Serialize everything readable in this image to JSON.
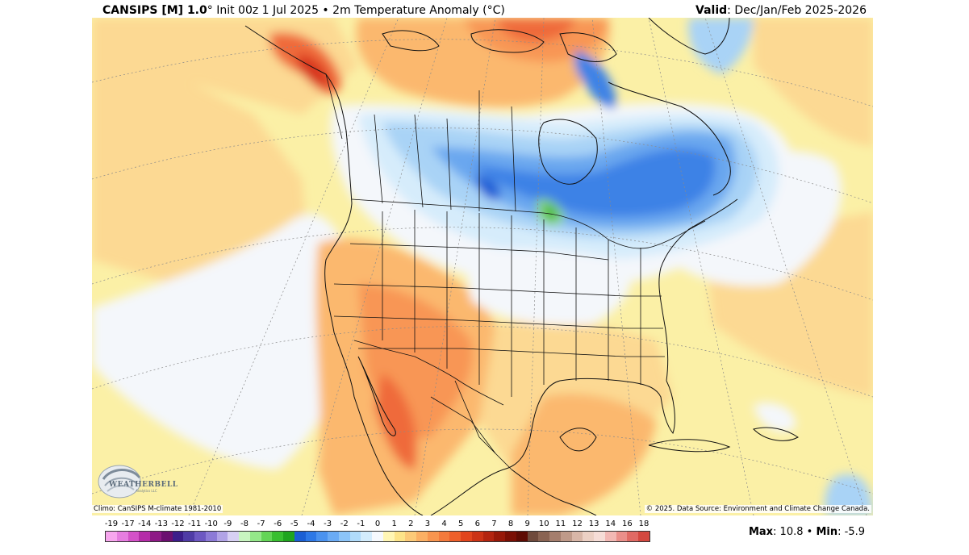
{
  "header": {
    "model": "CANSIPS [M] 1.0",
    "degree": "°",
    "init": " Init 00z 1 Jul 2025",
    "bullet": " • ",
    "field": "2m Temperature Anomaly (°C)",
    "valid_label": "Valid",
    "valid_value": ": Dec/Jan/Feb 2025-2026"
  },
  "footer": {
    "climo": "Climo: CanSIPS M-climate 1981-2010",
    "copyright": "© 2025. Data Source: Environment and Climate Change Canada.",
    "logo_text": "WEATHERBELL",
    "logo_sub": "Analytics LLC"
  },
  "stats": {
    "max_label": "Max",
    "max_value": ": 10.8",
    "sep": " • ",
    "min_label": "Min",
    "min_value": ": -5.9"
  },
  "legend": {
    "ticks": [
      "-19",
      "-17",
      "-14",
      "-13",
      "-12",
      "-11",
      "-10",
      "-9",
      "-8",
      "-7",
      "-6",
      "-5",
      "-4",
      "-3",
      "-2",
      "-1",
      "0",
      "1",
      "2",
      "3",
      "4",
      "5",
      "6",
      "7",
      "8",
      "9",
      "10",
      "11",
      "12",
      "13",
      "14",
      "16",
      "18"
    ],
    "colors": [
      "#f7a6ee",
      "#e67de0",
      "#d451c8",
      "#b52ca8",
      "#8e1a86",
      "#6b0f70",
      "#3c1d8a",
      "#4f3ba6",
      "#6d58c2",
      "#8c7ad6",
      "#b1a3e6",
      "#d7d0f3",
      "#c8f5c0",
      "#94e889",
      "#63d556",
      "#38bf30",
      "#1fa51f",
      "#1a5fd4",
      "#2d78e6",
      "#4a92ef",
      "#6aabf5",
      "#8cc4f8",
      "#b0dbfa",
      "#d3ecfc",
      "#f6f9fd",
      "#fff6b4",
      "#fde489",
      "#fcca78",
      "#fbb064",
      "#f8954f",
      "#f47a3c",
      "#ee5f2a",
      "#e2451c",
      "#cc3315",
      "#b3240f",
      "#971808",
      "#7a0f04",
      "#5e0b03",
      "#6f4a3c",
      "#8a6453",
      "#a57e6d",
      "#bf9a89",
      "#d8b6a7",
      "#ecd0c4",
      "#f6ddd7",
      "#f2b8b4",
      "#ea8f8a",
      "#e06a64",
      "#d4483f"
    ],
    "legend_colors_note": "colour swatches of the temperature anomaly scale"
  },
  "map_colors": {
    "ocean_bg": "#fbf0a6",
    "light_yellow": "#fff3b0",
    "tan": "#fcd993",
    "light_orange": "#fbb86e",
    "orange": "#f89655",
    "dark_orange": "#ef6a3a",
    "red": "#d8361c",
    "near_zero": "#f4f7fb",
    "ice_blue": "#d6ecfb",
    "light_blue": "#a9d3f6",
    "mid_blue": "#6aa7ef",
    "blue": "#3e82e6",
    "dark_blue": "#1f5fd6",
    "green": "#2fb52c",
    "light_green": "#8ed97e"
  }
}
